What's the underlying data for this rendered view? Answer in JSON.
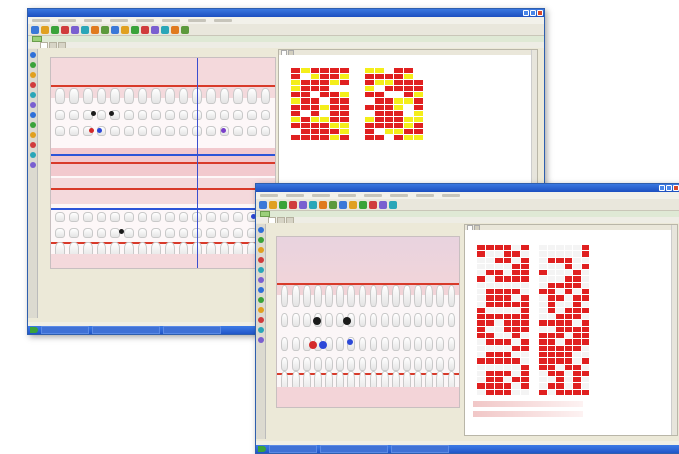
{
  "back_window": {
    "menu_items": [
      "",
      "",
      "",
      "",
      "",
      "",
      "",
      ""
    ],
    "strip_label": "",
    "tabs": [],
    "panel_tabs": [],
    "taskbar": {
      "start_label": "",
      "items": []
    }
  },
  "front_window": {
    "menu_items": [
      "",
      "",
      "",
      "",
      "",
      "",
      "",
      ""
    ],
    "strip_label": "",
    "tabs": [],
    "panel_tabs": [],
    "taskbar": {
      "start_label": "",
      "items": []
    }
  },
  "colors": {
    "gum": "#d83a2a",
    "perio_red": "#e02020",
    "perio_yellow": "#f4ee1a",
    "tooth": "#ffffff",
    "probe_blue": "#2c55d8",
    "title_blue": "#1c4fc0",
    "start_green": "#3aa33a"
  },
  "icons": [
    "save-icon",
    "print-icon",
    "chart-icon",
    "patient-icon",
    "refresh-icon",
    "settings-icon"
  ]
}
